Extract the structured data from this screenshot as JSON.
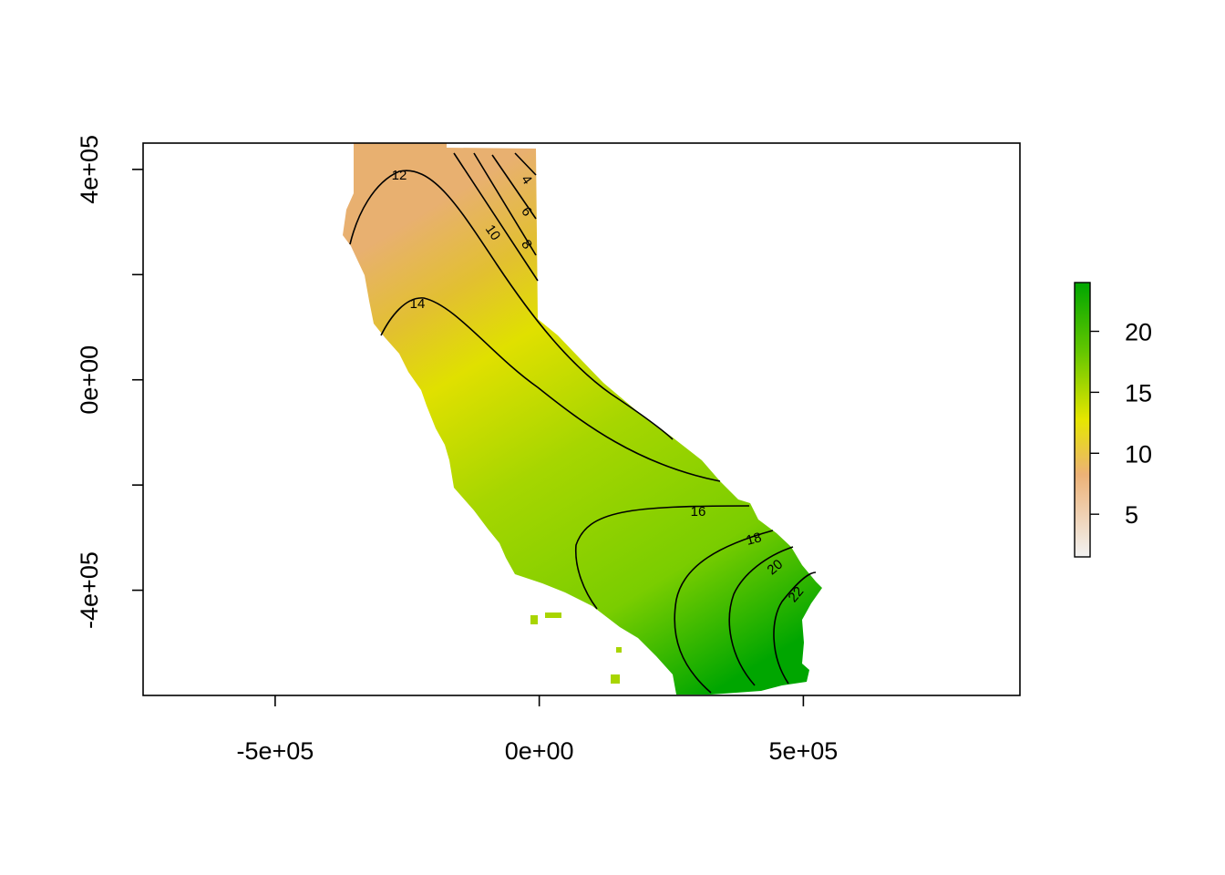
{
  "map": {
    "type": "raster-heatmap-with-contours",
    "x_axis": {
      "ticks": [
        -500000,
        0,
        500000
      ],
      "tick_labels": [
        "-5e+05",
        "0e+00",
        "5e+05"
      ],
      "range": [
        -750000,
        910000
      ]
    },
    "y_axis": {
      "ticks": [
        -400000,
        0,
        400000
      ],
      "tick_labels": [
        "-4e+05",
        "0e+00",
        "4e+05"
      ],
      "minor_ticks": [
        -200000,
        200000
      ],
      "range": [
        -600000,
        450000
      ]
    },
    "contours": {
      "levels": [
        4,
        6,
        8,
        10,
        12,
        14,
        16,
        18,
        20,
        22
      ],
      "labels": [
        "4",
        "6",
        "8",
        "10",
        "12",
        "14",
        "16",
        "18",
        "20",
        "22"
      ]
    },
    "legend": {
      "placement": "right",
      "range": [
        1.5,
        24
      ],
      "ticks": [
        5,
        10,
        15,
        20
      ],
      "tick_labels": [
        "5",
        "10",
        "15",
        "20"
      ],
      "colors": [
        "#F2F2F2",
        "#ECB176",
        "#E6E600",
        "#63C600",
        "#00A600"
      ]
    }
  }
}
